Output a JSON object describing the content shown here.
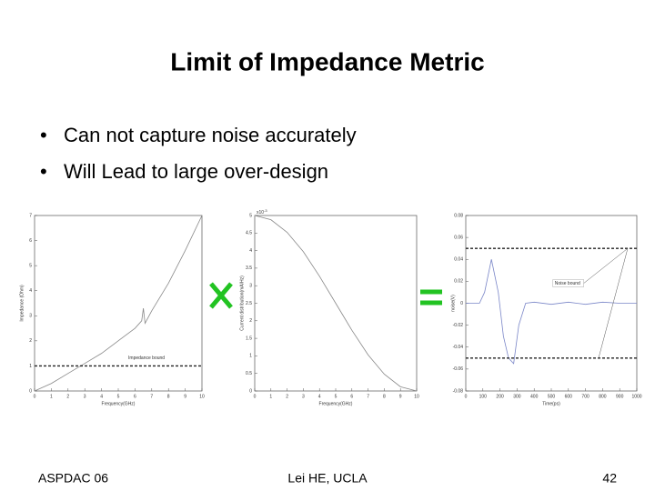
{
  "title": "Limit of Impedance Metric",
  "bullets": [
    "Can not capture noise accurately",
    "Will Lead to large over-design"
  ],
  "footer": {
    "left": "ASPDAC 06",
    "center": "Lei HE, UCLA",
    "right": "42"
  },
  "chart_data": [
    {
      "type": "line",
      "x_label": "Frequency(GHz)",
      "y_label": "Impedance (Ohm)",
      "x": [
        0,
        1,
        2,
        3,
        4,
        5,
        6,
        6.4,
        6.5,
        6.6,
        7,
        8,
        9,
        10
      ],
      "series": [
        {
          "color": "#888888",
          "values": [
            0,
            0.3,
            0.7,
            1.1,
            1.5,
            2,
            2.5,
            2.8,
            3.3,
            2.7,
            3.2,
            4.3,
            5.6,
            7
          ]
        }
      ],
      "xlim": [
        0,
        10
      ],
      "ylim": [
        0,
        7
      ],
      "xticks": [
        0,
        1,
        2,
        3,
        4,
        5,
        6,
        7,
        8,
        9,
        10
      ],
      "yticks": [
        0,
        1,
        2,
        3,
        4,
        5,
        6,
        7
      ],
      "bounds": [
        1
      ],
      "bound_label": "Impedance bound"
    },
    {
      "type": "line",
      "x_label": "Frequency(GHz)",
      "y_label": "Current distribution(mA/Hz)",
      "y_scale_base": "x10",
      "y_scale_exp": "-3",
      "x": [
        0,
        1,
        2,
        3,
        4,
        5,
        6,
        7,
        8,
        9,
        10
      ],
      "series": [
        {
          "color": "#888888",
          "values": [
            5,
            4.88,
            4.52,
            3.97,
            3.27,
            2.5,
            1.73,
            1.03,
            0.48,
            0.12,
            0
          ]
        }
      ],
      "xlim": [
        0,
        10
      ],
      "ylim": [
        0,
        5
      ],
      "xticks": [
        0,
        1,
        2,
        3,
        4,
        5,
        6,
        7,
        8,
        9,
        10
      ],
      "yticks": [
        0,
        0.5,
        1,
        1.5,
        2,
        2.5,
        3,
        3.5,
        4,
        4.5,
        5
      ]
    },
    {
      "type": "line",
      "x_label": "Time(ps)",
      "y_label": "noise(V)",
      "x": [
        0,
        80,
        110,
        150,
        190,
        220,
        250,
        280,
        310,
        350,
        400,
        500,
        600,
        700,
        800,
        900,
        1000
      ],
      "series": [
        {
          "color": "#7a86c8",
          "values": [
            0,
            0,
            0.01,
            0.04,
            0.01,
            -0.03,
            -0.05,
            -0.055,
            -0.02,
            0,
            0.001,
            -0.001,
            0.001,
            -0.001,
            0.001,
            0,
            0
          ]
        }
      ],
      "xlim": [
        0,
        1000
      ],
      "ylim": [
        -0.08,
        0.08
      ],
      "xticks": [
        0,
        100,
        200,
        300,
        400,
        500,
        600,
        700,
        800,
        900,
        1000
      ],
      "yticks": [
        -0.08,
        -0.06,
        -0.04,
        -0.02,
        0,
        0.02,
        0.04,
        0.06,
        0.08
      ],
      "bounds": [
        0.05,
        -0.05
      ],
      "bound_label": "Noise bound"
    }
  ]
}
